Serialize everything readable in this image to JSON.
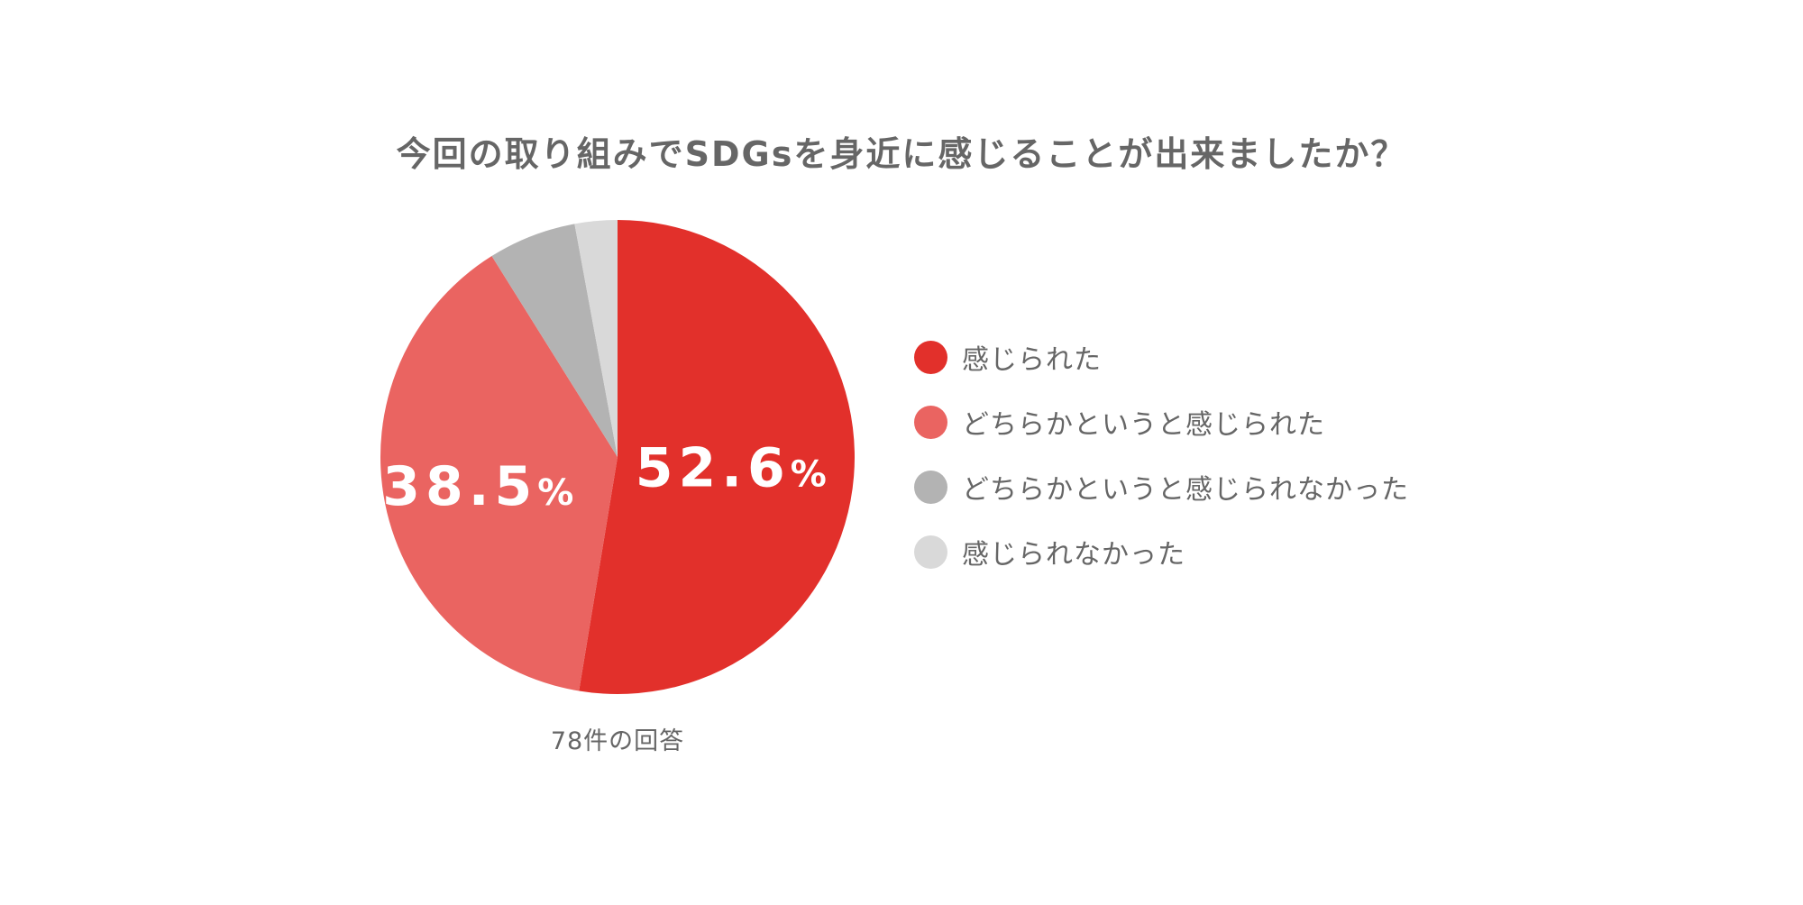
{
  "chart_data": {
    "type": "pie",
    "title": "今回の取り組みでSDGsを身近に感じることが出来ましたか？",
    "categories": [
      "感じられた",
      "どちらかというと感じられた",
      "どちらかというと感じられなかった",
      "感じられなかった"
    ],
    "values": [
      52.6,
      38.5,
      6.0,
      2.9
    ],
    "unit": "%",
    "colors": [
      "#e2302b",
      "#ea6461",
      "#b3b3b3",
      "#d9d9d9"
    ],
    "data_labels": [
      {
        "num": "52.6",
        "unit": "%"
      },
      {
        "num": "38.5",
        "unit": "%"
      },
      null,
      null
    ],
    "start_angle_deg": 0,
    "direction": "clockwise",
    "legend_position": "right",
    "total_label": "78件の回答"
  }
}
